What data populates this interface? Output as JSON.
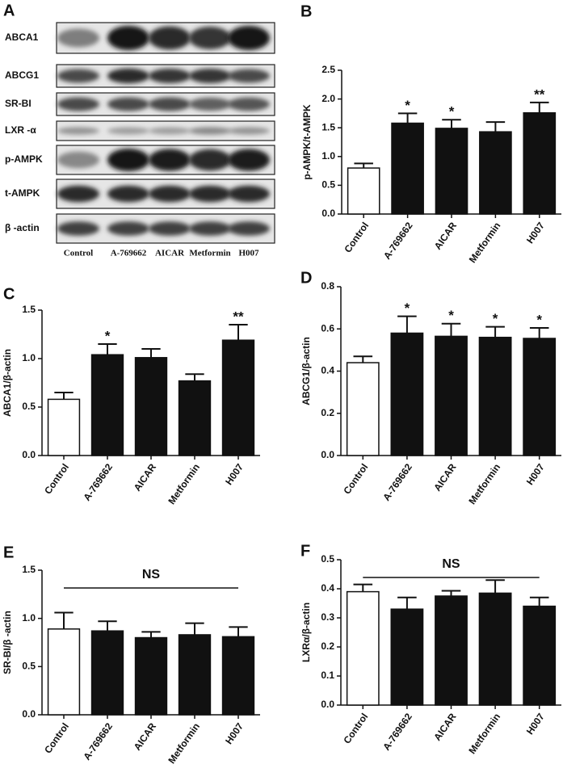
{
  "blot": {
    "panel": "A",
    "rows": [
      "ABCA1",
      "ABCG1",
      "SR-BI",
      "LXR -α",
      "p-AMPK",
      "t-AMPK",
      "β -actin"
    ],
    "lanes": [
      "Control",
      "A-769662",
      "AICAR",
      "Metformin",
      "H007"
    ]
  },
  "chart_data": [
    {
      "panel": "B",
      "type": "bar",
      "ylabel": "p-AMPK/t-AMPK",
      "categories": [
        "Control",
        "A-769662",
        "AICAR",
        "Metformin",
        "H007"
      ],
      "values": [
        0.8,
        1.58,
        1.49,
        1.43,
        1.76
      ],
      "errors": [
        0.08,
        0.17,
        0.15,
        0.17,
        0.18
      ],
      "annotations": [
        null,
        "*",
        "*",
        null,
        "**"
      ],
      "colors": [
        "#ffffff",
        "#111111",
        "#111111",
        "#111111",
        "#111111"
      ],
      "ylim": [
        0,
        2.5
      ],
      "yticks": [
        {
          "value": 0,
          "label": "0.0"
        },
        0.5,
        {
          "value": 1,
          "label": "1.0"
        },
        1.5,
        {
          "value": 2,
          "label": "2.0"
        },
        2.5
      ]
    },
    {
      "panel": "C",
      "type": "bar",
      "ylabel": "ABCA1/β-actin",
      "categories": [
        "Control",
        "A-769662",
        "AICAR",
        "Metformin",
        "H007"
      ],
      "values": [
        0.58,
        1.04,
        1.01,
        0.77,
        1.19
      ],
      "errors": [
        0.07,
        0.11,
        0.09,
        0.07,
        0.16
      ],
      "annotations": [
        null,
        "*",
        null,
        null,
        "**"
      ],
      "colors": [
        "#ffffff",
        "#111111",
        "#111111",
        "#111111",
        "#111111"
      ],
      "ylim": [
        0,
        1.5
      ],
      "yticks": [
        {
          "value": 0,
          "label": "0.0"
        },
        0.5,
        {
          "value": 1,
          "label": "1.0"
        },
        1.5
      ]
    },
    {
      "panel": "D",
      "type": "bar",
      "ylabel": "ABCG1/β-actin",
      "categories": [
        "Control",
        "A-769662",
        "AICAR",
        "Metformin",
        "H007"
      ],
      "values": [
        0.44,
        0.58,
        0.565,
        0.56,
        0.555
      ],
      "errors": [
        0.03,
        0.08,
        0.06,
        0.05,
        0.05
      ],
      "annotations": [
        null,
        "*",
        "*",
        "*",
        "*"
      ],
      "colors": [
        "#ffffff",
        "#111111",
        "#111111",
        "#111111",
        "#111111"
      ],
      "ylim": [
        0,
        0.8
      ],
      "yticks": [
        {
          "value": 0,
          "label": "0.0"
        },
        0.2,
        0.4,
        0.6,
        0.8
      ]
    },
    {
      "panel": "E",
      "type": "bar",
      "ylabel": "SR-BI/β -actin",
      "group_annotation": "NS",
      "categories": [
        "Control",
        "A-769662",
        "AICAR",
        "Metformin",
        "H007"
      ],
      "values": [
        0.89,
        0.87,
        0.8,
        0.83,
        0.81
      ],
      "errors": [
        0.17,
        0.1,
        0.06,
        0.12,
        0.1
      ],
      "colors": [
        "#ffffff",
        "#111111",
        "#111111",
        "#111111",
        "#111111"
      ],
      "ylim": [
        0,
        1.5
      ],
      "yticks": [
        {
          "value": 0,
          "label": "0.0"
        },
        0.5,
        {
          "value": 1,
          "label": "1.0"
        },
        1.5
      ]
    },
    {
      "panel": "F",
      "type": "bar",
      "ylabel": "LXRα/β-actin",
      "group_annotation": "NS",
      "categories": [
        "Control",
        "A-769662",
        "AICAR",
        "Metformin",
        "H007"
      ],
      "values": [
        0.39,
        0.33,
        0.375,
        0.385,
        0.34
      ],
      "errors": [
        0.025,
        0.04,
        0.018,
        0.045,
        0.03
      ],
      "colors": [
        "#ffffff",
        "#111111",
        "#111111",
        "#111111",
        "#111111"
      ],
      "ylim": [
        0,
        0.5
      ],
      "yticks": [
        {
          "value": 0,
          "label": "0.0"
        },
        0.1,
        0.2,
        0.3,
        0.4,
        0.5
      ]
    }
  ]
}
